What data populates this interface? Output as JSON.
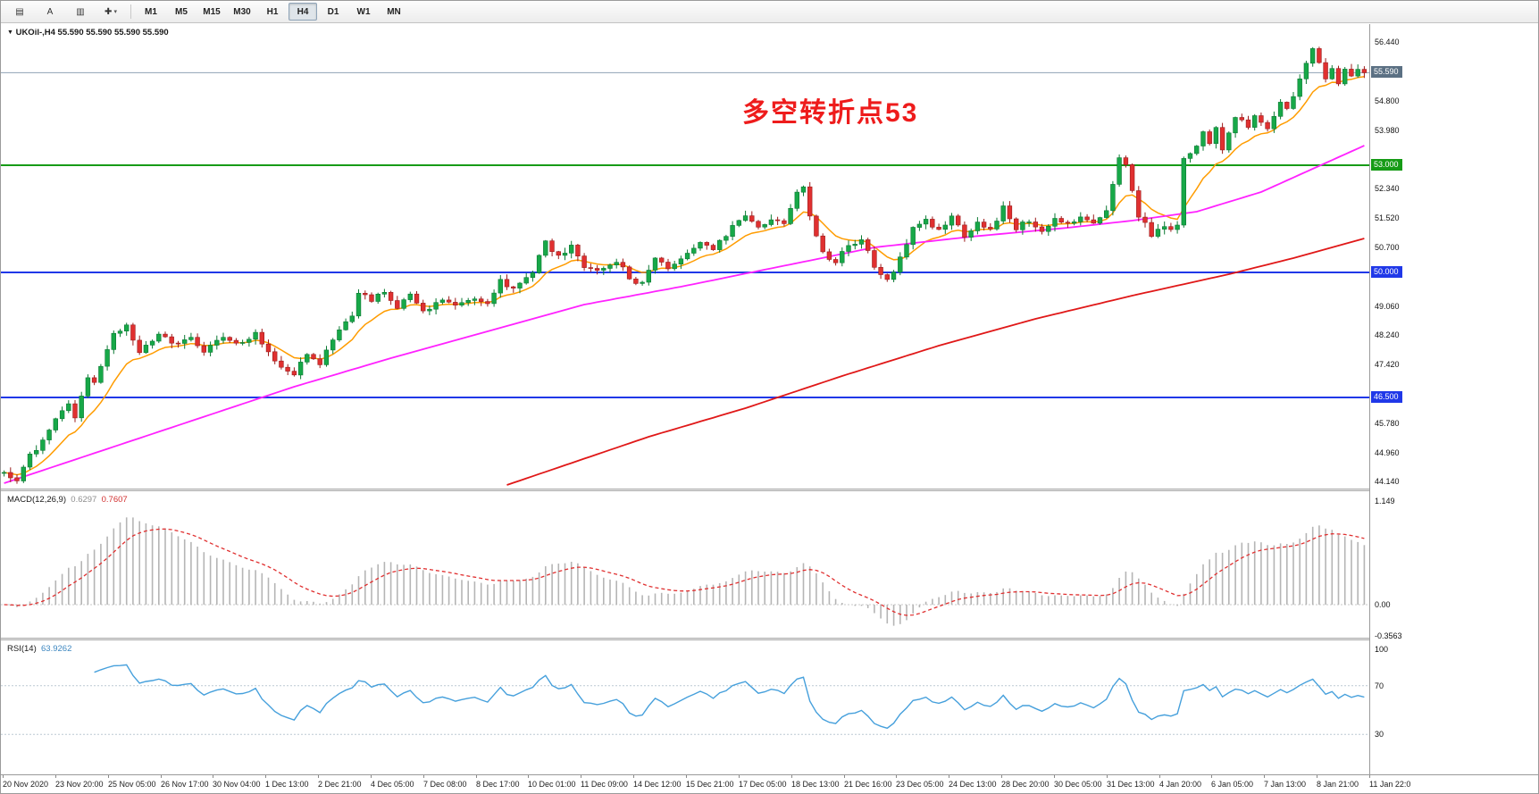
{
  "toolbar": {
    "icons": [
      {
        "name": "market-watch-icon",
        "glyph": "▤"
      },
      {
        "name": "cursor-arrow-icon",
        "glyph": "A"
      },
      {
        "name": "chart-window-icon",
        "glyph": "▥"
      },
      {
        "name": "crosshair-icon",
        "glyph": "✚",
        "caret": true
      }
    ],
    "timeframes": [
      "M1",
      "M5",
      "M15",
      "M30",
      "H1",
      "H4",
      "D1",
      "W1",
      "MN"
    ],
    "active_timeframe": "H4"
  },
  "chart": {
    "collapse_icon_glyph": "▼",
    "symbol_line": "UKOil-,H4  55.590 55.590 55.590 55.590",
    "annotation": {
      "text": "多空转折点53",
      "color": "#ee1c1c"
    }
  },
  "chart_data": {
    "type": "candlestick",
    "title": "UKOil-,H4",
    "timeframe": "H4",
    "bars": 212,
    "last_price": 55.59,
    "price_range": [
      43.95,
      56.95
    ],
    "candle_up_color": "#17a848",
    "candle_down_color": "#e03030",
    "candle_up_stroke": "#0b7a33",
    "candle_down_stroke": "#9c1c1c",
    "price_axis_ticks": [
      {
        "label": "56.440",
        "value": 56.44
      },
      {
        "label": "54.800",
        "value": 54.8
      },
      {
        "label": "53.980",
        "value": 53.98
      },
      {
        "label": "52.340",
        "value": 52.34
      },
      {
        "label": "51.520",
        "value": 51.52
      },
      {
        "label": "50.700",
        "value": 50.7
      },
      {
        "label": "49.060",
        "value": 49.06
      },
      {
        "label": "48.240",
        "value": 48.24
      },
      {
        "label": "47.420",
        "value": 47.42
      },
      {
        "label": "45.780",
        "value": 45.78
      },
      {
        "label": "44.960",
        "value": 44.96
      },
      {
        "label": "44.140",
        "value": 44.14
      }
    ],
    "hlines": [
      {
        "name": "current-price-line",
        "value": 55.59,
        "label": "55.590",
        "line_color": "#8fa2b5",
        "badge_bg": "#5b7083",
        "width": 1
      },
      {
        "name": "level-53",
        "value": 53.0,
        "label": "53.000",
        "line_color": "#169b16",
        "badge_bg": "#169b16",
        "width": 2
      },
      {
        "name": "level-50",
        "value": 50.0,
        "label": "50.000",
        "line_color": "#2038e8",
        "badge_bg": "#2038e8",
        "width": 2
      },
      {
        "name": "level-46-5",
        "value": 46.5,
        "label": "46.500",
        "line_color": "#2038e8",
        "badge_bg": "#2038e8",
        "width": 2
      }
    ],
    "price_path_anchors": [
      [
        0,
        44.4
      ],
      [
        2,
        44.15
      ],
      [
        4,
        44.85
      ],
      [
        6,
        45.3
      ],
      [
        8,
        45.9
      ],
      [
        10,
        46.3
      ],
      [
        11,
        45.95
      ],
      [
        13,
        47.1
      ],
      [
        14,
        46.85
      ],
      [
        17,
        48.25
      ],
      [
        19,
        48.55
      ],
      [
        21,
        47.7
      ],
      [
        24,
        48.3
      ],
      [
        26,
        47.95
      ],
      [
        29,
        48.15
      ],
      [
        31,
        47.8
      ],
      [
        34,
        48.25
      ],
      [
        36,
        47.95
      ],
      [
        39,
        48.3
      ],
      [
        42,
        47.45
      ],
      [
        45,
        47.2
      ],
      [
        47,
        47.65
      ],
      [
        49,
        47.45
      ],
      [
        52,
        48.45
      ],
      [
        54,
        48.85
      ],
      [
        55,
        49.45
      ],
      [
        57,
        49.25
      ],
      [
        59,
        49.5
      ],
      [
        61,
        49.05
      ],
      [
        63,
        49.35
      ],
      [
        65,
        48.9
      ],
      [
        68,
        49.25
      ],
      [
        70,
        49.05
      ],
      [
        73,
        49.3
      ],
      [
        75,
        49.2
      ],
      [
        77,
        49.75
      ],
      [
        79,
        49.55
      ],
      [
        82,
        50.05
      ],
      [
        84,
        50.85
      ],
      [
        86,
        50.45
      ],
      [
        88,
        50.7
      ],
      [
        90,
        50.15
      ],
      [
        93,
        50.05
      ],
      [
        95,
        50.35
      ],
      [
        97,
        49.85
      ],
      [
        99,
        49.65
      ],
      [
        101,
        50.35
      ],
      [
        103,
        50.15
      ],
      [
        106,
        50.55
      ],
      [
        108,
        50.9
      ],
      [
        110,
        50.7
      ],
      [
        113,
        51.25
      ],
      [
        115,
        51.55
      ],
      [
        117,
        51.3
      ],
      [
        119,
        51.5
      ],
      [
        121,
        51.35
      ],
      [
        123,
        52.3
      ],
      [
        124,
        52.4
      ],
      [
        125,
        51.55
      ],
      [
        127,
        50.55
      ],
      [
        129,
        50.25
      ],
      [
        131,
        50.8
      ],
      [
        133,
        50.9
      ],
      [
        135,
        50.2
      ],
      [
        137,
        49.75
      ],
      [
        139,
        50.4
      ],
      [
        141,
        51.3
      ],
      [
        143,
        51.45
      ],
      [
        145,
        51.2
      ],
      [
        147,
        51.55
      ],
      [
        149,
        51.05
      ],
      [
        151,
        51.4
      ],
      [
        153,
        51.15
      ],
      [
        155,
        51.85
      ],
      [
        157,
        51.25
      ],
      [
        159,
        51.45
      ],
      [
        161,
        51.2
      ],
      [
        163,
        51.5
      ],
      [
        165,
        51.35
      ],
      [
        167,
        51.6
      ],
      [
        169,
        51.4
      ],
      [
        171,
        51.75
      ],
      [
        172,
        52.4
      ],
      [
        173,
        53.15
      ],
      [
        174,
        53.05
      ],
      [
        175,
        52.35
      ],
      [
        176,
        51.6
      ],
      [
        178,
        51.05
      ],
      [
        180,
        51.3
      ],
      [
        181,
        51.15
      ],
      [
        182,
        51.3
      ],
      [
        183,
        53.2
      ],
      [
        185,
        53.55
      ],
      [
        186,
        53.95
      ],
      [
        187,
        53.6
      ],
      [
        188,
        54.1
      ],
      [
        189,
        53.5
      ],
      [
        190,
        53.85
      ],
      [
        191,
        54.35
      ],
      [
        193,
        54.1
      ],
      [
        194,
        54.45
      ],
      [
        195,
        54.15
      ],
      [
        196,
        53.95
      ],
      [
        197,
        54.35
      ],
      [
        198,
        54.7
      ],
      [
        199,
        54.55
      ],
      [
        200,
        54.95
      ],
      [
        202,
        55.85
      ],
      [
        203,
        56.3
      ],
      [
        204,
        55.9
      ],
      [
        205,
        55.45
      ],
      [
        206,
        55.75
      ],
      [
        207,
        55.35
      ],
      [
        208,
        55.65
      ],
      [
        209,
        55.45
      ],
      [
        210,
        55.7
      ],
      [
        211,
        55.59
      ]
    ],
    "moving_averages": [
      {
        "name": "ma-fast",
        "color": "#ff9c00",
        "width": 1.5,
        "derive": "ema",
        "period": 10
      },
      {
        "name": "ma-mid",
        "color": "#ff22ff",
        "width": 1.8,
        "anchors": [
          [
            0,
            44.1
          ],
          [
            15,
            45.0
          ],
          [
            30,
            45.9
          ],
          [
            45,
            46.8
          ],
          [
            60,
            47.6
          ],
          [
            75,
            48.35
          ],
          [
            90,
            49.1
          ],
          [
            105,
            49.6
          ],
          [
            120,
            50.15
          ],
          [
            135,
            50.7
          ],
          [
            150,
            51.0
          ],
          [
            165,
            51.25
          ],
          [
            175,
            51.45
          ],
          [
            185,
            51.7
          ],
          [
            195,
            52.25
          ],
          [
            203,
            52.9
          ],
          [
            211,
            53.55
          ]
        ]
      },
      {
        "name": "ma-slow",
        "color": "#e01818",
        "width": 1.8,
        "start": 78,
        "anchors": [
          [
            78,
            44.05
          ],
          [
            100,
            45.4
          ],
          [
            115,
            46.2
          ],
          [
            130,
            47.1
          ],
          [
            145,
            47.95
          ],
          [
            160,
            48.7
          ],
          [
            175,
            49.35
          ],
          [
            190,
            49.95
          ],
          [
            200,
            50.4
          ],
          [
            211,
            50.95
          ]
        ]
      }
    ],
    "macd": {
      "label_base": "MACD(12,26,9)",
      "value_main": "0.6297",
      "value_signal": "0.7607",
      "params": [
        12,
        26,
        9
      ],
      "axis_ticks": [
        {
          "label": "1.149",
          "value": 1.149
        },
        {
          "label": "0.00",
          "value": 0.0
        },
        {
          "label": "-0.3563",
          "value": -0.3563
        }
      ],
      "histogram_color": "#b5b5b5",
      "signal_color": "#e03030",
      "zero_line_color": "#c8c8c8"
    },
    "rsi": {
      "label_base": "RSI(14)",
      "value": "63.9262",
      "period": 14,
      "axis_ticks": [
        {
          "label": "100",
          "value": 100
        },
        {
          "label": "70",
          "value": 70
        },
        {
          "label": "30",
          "value": 30
        }
      ],
      "levels": [
        70,
        30
      ],
      "line_color": "#46a0dc",
      "level_color": "#bcc9d2"
    },
    "x_labels": [
      "20 Nov 2020",
      "23 Nov 20:00",
      "25 Nov 05:00",
      "26 Nov 17:00",
      "30 Nov 04:00",
      "1 Dec 13:00",
      "2 Dec 21:00",
      "4 Dec 05:00",
      "7 Dec 08:00",
      "8 Dec 17:00",
      "10 Dec 01:00",
      "11 Dec 09:00",
      "14 Dec 12:00",
      "15 Dec 21:00",
      "17 Dec 05:00",
      "18 Dec 13:00",
      "21 Dec 16:00",
      "23 Dec 05:00",
      "24 Dec 13:00",
      "28 Dec 20:00",
      "30 Dec 05:00",
      "31 Dec 13:00",
      "4 Jan 20:00",
      "6 Jan 05:00",
      "7 Jan 13:00",
      "8 Jan 21:00",
      "11 Jan 22:0"
    ]
  }
}
